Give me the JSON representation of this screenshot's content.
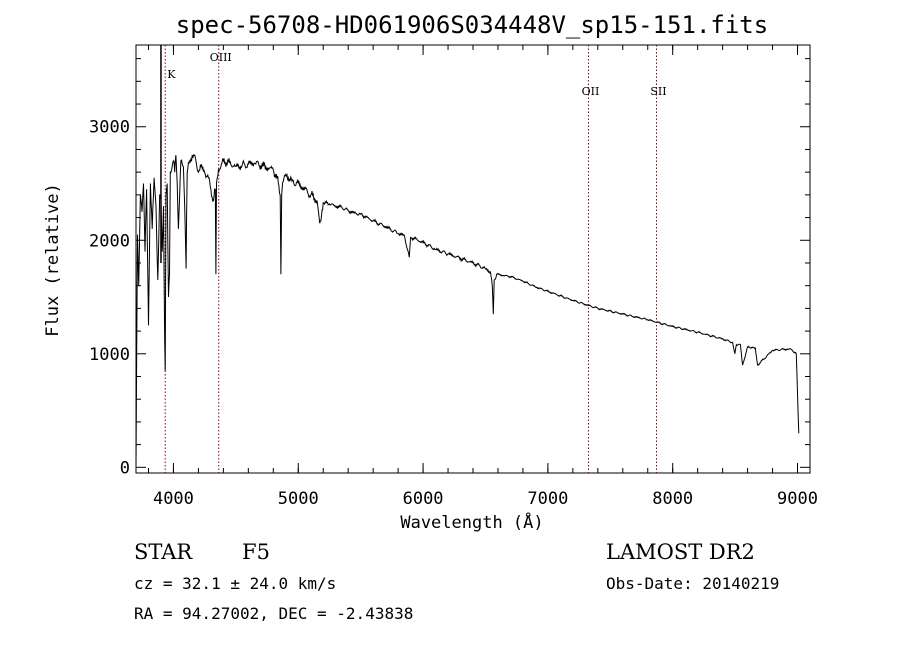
{
  "chart_data": {
    "type": "line",
    "title": "spec-56708-HD061906S034448V_sp15-151.fits",
    "xlabel": "Wavelength (Å)",
    "ylabel": "Flux (relative)",
    "xlim": [
      3700,
      9100
    ],
    "ylim": [
      -50,
      3720
    ],
    "x_ticks": [
      4000,
      5000,
      6000,
      7000,
      8000,
      9000
    ],
    "y_ticks": [
      0,
      1000,
      2000,
      3000
    ],
    "grid": false,
    "line_color": "#000000",
    "marker_color": "#8b0000",
    "spectral_lines": [
      {
        "label": "K",
        "x": 3934
      },
      {
        "label": "OIII",
        "x": 4363
      },
      {
        "label": "OII",
        "x": 7325
      },
      {
        "label": "SII",
        "x": 7870
      }
    ],
    "series": [
      {
        "x": [
          3700,
          3712,
          3722,
          3735,
          3748,
          3760,
          3772,
          3785,
          3800,
          3815,
          3830,
          3845,
          3860,
          3875,
          3890,
          3900,
          3910,
          3920,
          3930,
          3934,
          3940,
          3950,
          3960,
          3968,
          3975,
          3990,
          4000,
          4010,
          4020,
          4030,
          4040,
          4060,
          4080,
          4090,
          4101,
          4110,
          4130,
          4150,
          4180,
          4200,
          4220,
          4250,
          4280,
          4300,
          4320,
          4335,
          4340,
          4345,
          4360,
          4380,
          4400,
          4450,
          4500,
          4550,
          4600,
          4650,
          4700,
          4750,
          4800,
          4830,
          4855,
          4861,
          4867,
          4880,
          4900,
          4950,
          5000,
          5050,
          5100,
          5150,
          5172,
          5200,
          5250,
          5300,
          5350,
          5400,
          5450,
          5500,
          5600,
          5700,
          5800,
          5850,
          5890,
          5900,
          6000,
          6100,
          6200,
          6300,
          6400,
          6500,
          6540,
          6555,
          6563,
          6570,
          6590,
          6700,
          6800,
          6900,
          7000,
          7200,
          7400,
          7600,
          7800,
          8000,
          8200,
          8400,
          8480,
          8498,
          8510,
          8542,
          8560,
          8600,
          8662,
          8680,
          8800,
          8900,
          8950,
          8990,
          9010
        ],
        "values": [
          0,
          2050,
          1600,
          2400,
          2250,
          2500,
          1900,
          2450,
          1250,
          2500,
          2100,
          2550,
          2300,
          1650,
          2400,
          2350,
          1900,
          2300,
          1100,
          850,
          2400,
          2500,
          1500,
          1700,
          2600,
          2650,
          2700,
          2600,
          2750,
          2500,
          2100,
          2700,
          2650,
          2300,
          1750,
          2600,
          2700,
          2750,
          2700,
          2600,
          2650,
          2600,
          2550,
          2450,
          2350,
          2450,
          1700,
          2500,
          2620,
          2650,
          2700,
          2680,
          2650,
          2660,
          2670,
          2680,
          2660,
          2640,
          2620,
          2550,
          2400,
          1700,
          2400,
          2520,
          2580,
          2520,
          2500,
          2450,
          2400,
          2350,
          2150,
          2330,
          2320,
          2300,
          2290,
          2260,
          2240,
          2230,
          2170,
          2120,
          2060,
          2040,
          1850,
          2030,
          1980,
          1920,
          1880,
          1840,
          1800,
          1750,
          1720,
          1600,
          1350,
          1650,
          1700,
          1680,
          1640,
          1590,
          1550,
          1470,
          1400,
          1350,
          1300,
          1240,
          1190,
          1130,
          1100,
          1000,
          1080,
          1080,
          900,
          1060,
          1050,
          900,
          1030,
          1040,
          1040,
          1000,
          300
        ]
      }
    ]
  },
  "info": {
    "object_type": "STAR",
    "subclass": "F5",
    "redshift": "cz = 32.1 ± 24.0 km/s",
    "coords": "RA =  94.27002, DEC =  -2.43838",
    "survey": "LAMOST DR2",
    "obs_date": "Obs-Date: 20140219"
  }
}
